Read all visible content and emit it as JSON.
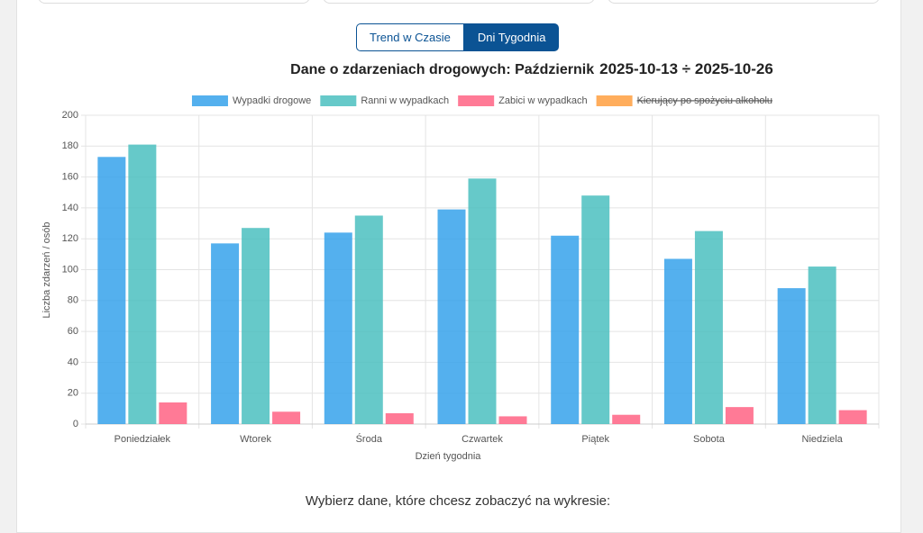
{
  "tabs": [
    "Trend w Czasie",
    "Dni Tygodnia"
  ],
  "active_tab": 1,
  "prompt": "Wybierz dane, które chcesz zobaczyć na wykresie:",
  "chart_data": {
    "type": "bar",
    "title": "Dane o zdarzeniach drogowych: Październik",
    "date_range": "2025-10-13 ÷ 2025-10-26",
    "x_label": "Dzień tygodnia",
    "y_label": "Liczba zdarzeń / osób",
    "categories": [
      "Poniedziałek",
      "Wtorek",
      "Środa",
      "Czwartek",
      "Piątek",
      "Sobota",
      "Niedziela"
    ],
    "series": [
      {
        "name": "Wypadki drogowe",
        "color": "#36a2eb",
        "values": [
          173,
          117,
          124,
          139,
          122,
          107,
          88
        ]
      },
      {
        "name": "Ranni w wypadkach",
        "color": "#4bc0c0",
        "values": [
          181,
          127,
          135,
          159,
          148,
          125,
          102
        ]
      },
      {
        "name": "Zabici w wypadkach",
        "color": "#ff6384",
        "values": [
          14,
          8,
          7,
          5,
          6,
          11,
          9
        ]
      },
      {
        "name": "Kierujący po spożyciu alkoholu",
        "color": "#ff9f40",
        "hidden": true,
        "values": [
          null,
          null,
          null,
          null,
          null,
          null,
          null
        ]
      }
    ],
    "ylim": [
      0,
      200
    ],
    "yticks": [
      0,
      20,
      40,
      60,
      80,
      100,
      120,
      140,
      160,
      180,
      200
    ],
    "grid": true,
    "legend": "top"
  }
}
